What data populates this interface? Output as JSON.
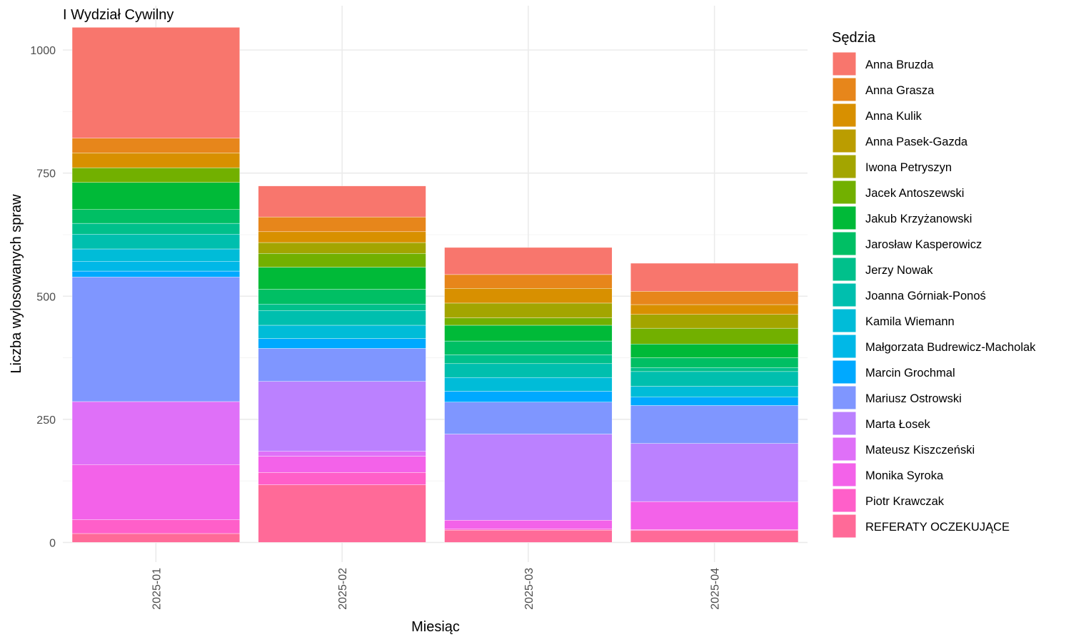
{
  "chart_data": {
    "type": "bar",
    "stacked": true,
    "title": "I Wydział Cywilny",
    "xlabel": "Miesiąc",
    "ylabel": "Liczba wylosowanych spraw",
    "ylim": [
      -40,
      1090
    ],
    "yticks": [
      0,
      250,
      500,
      750,
      1000
    ],
    "grid": true,
    "legend_title": "Sędzia",
    "legend_position": "right",
    "categories": [
      "2025-01",
      "2025-02",
      "2025-03",
      "2025-04"
    ],
    "series": [
      {
        "name": "Anna Bruzda",
        "color": "#F8766D",
        "values": [
          225,
          63,
          55,
          57
        ]
      },
      {
        "name": "Anna Grasza",
        "color": "#E7861B",
        "values": [
          30,
          30,
          28,
          27
        ]
      },
      {
        "name": "Anna Kulik",
        "color": "#D89000",
        "values": [
          30,
          22,
          30,
          20
        ]
      },
      {
        "name": "Anna Pasek-Gazda",
        "color": "#BB9D00",
        "values": [
          0,
          0,
          0,
          0
        ]
      },
      {
        "name": "Iwona Petryszyn",
        "color": "#A3A500",
        "values": [
          0,
          22,
          30,
          28
        ]
      },
      {
        "name": "Jacek Antoszewski",
        "color": "#72B000",
        "values": [
          30,
          28,
          15,
          32
        ]
      },
      {
        "name": "Jakub Krzyżanowski",
        "color": "#00BA38",
        "values": [
          55,
          45,
          32,
          28
        ]
      },
      {
        "name": "Jarosław Kasperowicz",
        "color": "#00BF64",
        "values": [
          28,
          30,
          28,
          20
        ]
      },
      {
        "name": "Jerzy Nowak",
        "color": "#00C08B",
        "values": [
          22,
          13,
          18,
          8
        ]
      },
      {
        "name": "Joanna Górniak-Ponoś",
        "color": "#00BFAE",
        "values": [
          30,
          30,
          28,
          30
        ]
      },
      {
        "name": "Kamila Wiemann",
        "color": "#00BCD8",
        "values": [
          25,
          27,
          28,
          22
        ]
      },
      {
        "name": "Małgorzata Budrewicz-Macholak",
        "color": "#00B8E7",
        "values": [
          20,
          0,
          0,
          0
        ]
      },
      {
        "name": "Marcin Grochmal",
        "color": "#00A9FF",
        "values": [
          12,
          20,
          22,
          17
        ]
      },
      {
        "name": "Mariusz Ostrowski",
        "color": "#7F96FF",
        "values": [
          253,
          67,
          65,
          77
        ]
      },
      {
        "name": "Marta Łosek",
        "color": "#BB81FF",
        "values": [
          0,
          142,
          175,
          118
        ]
      },
      {
        "name": "Mateusz Kiszczeński",
        "color": "#DF70F8",
        "values": [
          128,
          10,
          0,
          0
        ]
      },
      {
        "name": "Monika Syroka",
        "color": "#F362E9",
        "values": [
          112,
          33,
          18,
          57
        ]
      },
      {
        "name": "Piotr Krawczak",
        "color": "#FF5FC9",
        "values": [
          28,
          25,
          2,
          2
        ]
      },
      {
        "name": "REFERATY OCZEKUJĄCE",
        "color": "#FF6A98",
        "values": [
          18,
          117,
          25,
          24
        ]
      }
    ]
  }
}
